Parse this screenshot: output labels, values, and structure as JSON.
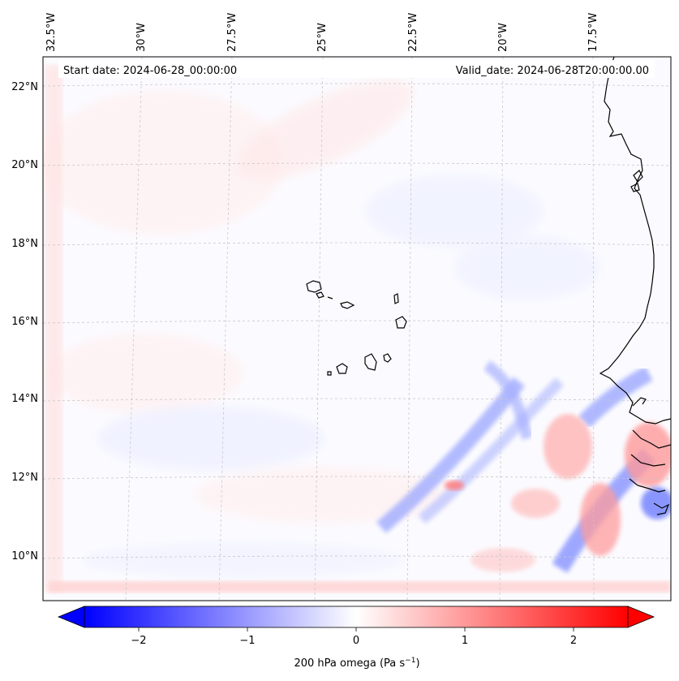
{
  "header": {
    "start_date": "Start date: 2024-06-28_00:00:00",
    "valid_date": "Valid_date: 2024-06-28T20:00:00.00"
  },
  "axes": {
    "lon_ticks": [
      "32.5°W",
      "30°W",
      "27.5°W",
      "25°W",
      "22.5°W",
      "20°W",
      "17.5°W"
    ],
    "lat_ticks": [
      "22°N",
      "20°N",
      "18°N",
      "16°N",
      "14°N",
      "12°N",
      "10°N"
    ]
  },
  "colorbar": {
    "title": "200 hPa omega (Pa s",
    "title_exponent": "−1",
    "title_close": ")",
    "ticks": [
      "−2",
      "−1",
      "0",
      "1",
      "2"
    ],
    "tick_values": [
      -2,
      -1,
      0,
      1,
      2
    ],
    "range": [
      -2.5,
      2.5
    ],
    "low_color": "#0000ff",
    "mid_color": "#ffffff",
    "high_color": "#ff0000"
  },
  "colors": {
    "coastline": "#000000",
    "gridline": "#c8c8c8",
    "field_background": "#fbfbff"
  }
}
